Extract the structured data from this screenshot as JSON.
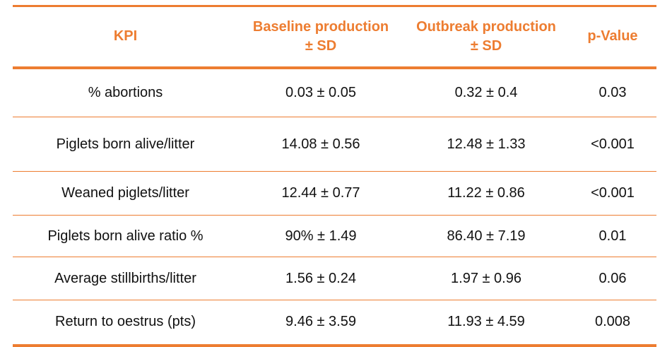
{
  "table": {
    "headers": {
      "kpi": "KPI",
      "baseline_line1": "Baseline production",
      "baseline_line2": "± SD",
      "outbreak_line1": "Outbreak production",
      "outbreak_line2": "± SD",
      "pvalue": "p-Value"
    },
    "rows": [
      {
        "kpi": "% abortions",
        "baseline": "0.03 ± 0.05",
        "outbreak": "0.32 ± 0.4",
        "pvalue": "0.03"
      },
      {
        "kpi": "Piglets born alive/litter",
        "baseline": "14.08 ± 0.56",
        "outbreak": "12.48 ± 1.33",
        "pvalue": "<0.001"
      },
      {
        "kpi": "Weaned piglets/litter",
        "baseline": "12.44 ± 0.77",
        "outbreak": "11.22 ± 0.86",
        "pvalue": "<0.001"
      },
      {
        "kpi": "Piglets born alive ratio %",
        "baseline": "90% ± 1.49",
        "outbreak": "86.40 ± 7.19",
        "pvalue": "0.01"
      },
      {
        "kpi": "Average stillbirths/litter",
        "baseline": "1.56 ± 0.24",
        "outbreak": "1.97 ± 0.96",
        "pvalue": "0.06"
      },
      {
        "kpi": "Return to oestrus (pts)",
        "baseline": "9.46 ± 3.59",
        "outbreak": "11.93 ± 4.59",
        "pvalue": "0.008"
      }
    ],
    "accent_color": "#ED7D31"
  }
}
